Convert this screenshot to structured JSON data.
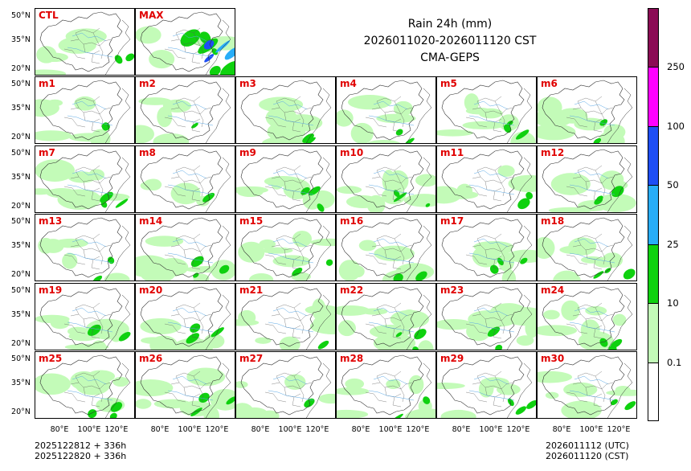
{
  "title": {
    "line1": "Rain 24h (mm)",
    "line2": "2026011020-2026011120 CST",
    "line3": "CMA-GEPS"
  },
  "panels": [
    "CTL",
    "MAX",
    "m1",
    "m2",
    "m3",
    "m4",
    "m5",
    "m6",
    "m7",
    "m8",
    "m9",
    "m10",
    "m11",
    "m12",
    "m13",
    "m14",
    "m15",
    "m16",
    "m17",
    "m18",
    "m19",
    "m20",
    "m21",
    "m22",
    "m23",
    "m24",
    "m25",
    "m26",
    "m27",
    "m28",
    "m29",
    "m30"
  ],
  "lat_ticks": [
    "50°N",
    "35°N",
    "20°N"
  ],
  "lon_ticks": [
    "80°E",
    "100°E",
    "120°E"
  ],
  "colorbar": {
    "levels": [
      "0.1",
      "10",
      "25",
      "50",
      "100",
      "250"
    ],
    "colors": [
      "#ffffff",
      "#c3fbb8",
      "#0fd10f",
      "#28adf8",
      "#1e4ef5",
      "#ff00ff",
      "#8b0b55"
    ]
  },
  "footer": {
    "init_utc": "2025122812 + 336h",
    "init_cst": "2025122820 + 336h",
    "valid_utc": "2026011112 (UTC)",
    "valid_cst": "2026011120 (CST)"
  }
}
